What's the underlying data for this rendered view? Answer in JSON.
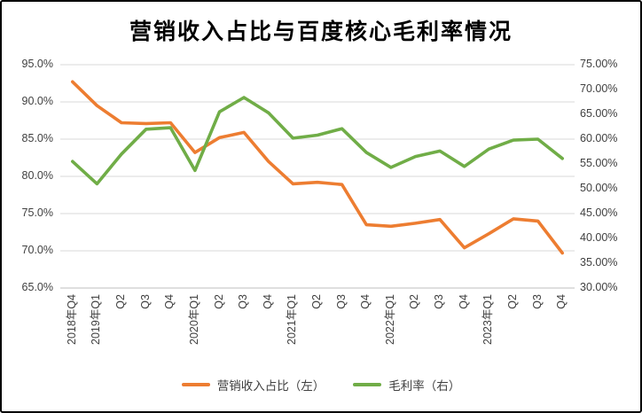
{
  "chart_data": {
    "type": "line",
    "title": "营销收入占比与百度核心毛利率情况",
    "categories": [
      "2018年Q4",
      "2019年Q1",
      "Q2",
      "Q3",
      "Q4",
      "2020年Q1",
      "Q2",
      "Q3",
      "Q4",
      "2021年Q1",
      "Q2",
      "Q3",
      "Q4",
      "2022年Q1",
      "Q2",
      "Q3",
      "Q4",
      "2023年Q1",
      "Q2",
      "Q3",
      "Q4"
    ],
    "series": [
      {
        "name": "营销收入占比（左）",
        "axis": "left",
        "color": "#ED7D31",
        "values": [
          92.7,
          89.5,
          87.2,
          87.1,
          87.2,
          83.2,
          85.2,
          85.9,
          82.0,
          79.0,
          79.2,
          78.9,
          73.5,
          73.3,
          73.7,
          74.2,
          70.4,
          72.3,
          74.3,
          74.0,
          69.7
        ]
      },
      {
        "name": "毛利率（右）",
        "axis": "right",
        "color": "#70AD47",
        "values": [
          55.5,
          51.0,
          57.0,
          62.0,
          62.3,
          53.7,
          65.5,
          68.4,
          65.3,
          60.2,
          60.8,
          62.1,
          57.3,
          54.3,
          56.5,
          57.6,
          54.5,
          58.0,
          59.8,
          60.0,
          56.1
        ]
      }
    ],
    "left_axis": {
      "min": 65,
      "max": 95,
      "ticks": [
        "95.0%",
        "90.0%",
        "85.0%",
        "80.0%",
        "75.0%",
        "70.0%",
        "65.0%"
      ]
    },
    "right_axis": {
      "min": 30,
      "max": 75,
      "ticks": [
        "75.00%",
        "70.00%",
        "65.00%",
        "60.00%",
        "55.00%",
        "50.00%",
        "45.00%",
        "40.00%",
        "35.00%",
        "30.00%"
      ]
    },
    "grid": true,
    "legend_position": "bottom",
    "colors": {
      "gridline": "#D9D9D9",
      "axis_line": "#BFBFBF",
      "tick_text": "#404040"
    }
  }
}
